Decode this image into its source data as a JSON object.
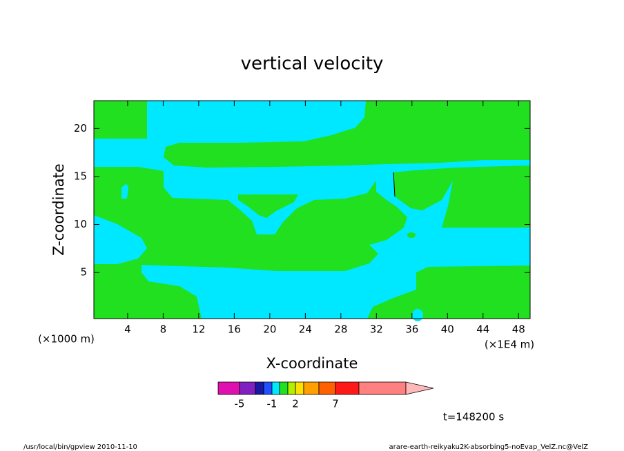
{
  "chart_data": {
    "type": "contour",
    "title": "vertical velocity",
    "x_label": "X-coordinate",
    "y_label": "Z-coordinate",
    "x_unit": "(×1E4 m)",
    "y_unit": "(×1000 m)",
    "xlim": [
      0.2,
      49.3
    ],
    "ylim": [
      0.2,
      22.9
    ],
    "xticks": [
      4,
      8,
      12,
      16,
      20,
      24,
      28,
      32,
      36,
      40,
      44,
      48
    ],
    "yticks": [
      5,
      10,
      15,
      20
    ],
    "colorbar": {
      "levels": [
        -7,
        -5,
        -3,
        -2,
        -1,
        0,
        1,
        2,
        3,
        5,
        7,
        10,
        15
      ],
      "colors": [
        "#e010b0",
        "#8020c0",
        "#1818a0",
        "#2050ff",
        "#00e8ff",
        "#20e020",
        "#b0f000",
        "#ffe000",
        "#ffa000",
        "#ff6000",
        "#ff1818",
        "#ff8080"
      ],
      "extend_color": "#ffb8b8",
      "ticks": [
        -5,
        -1,
        2,
        7
      ]
    },
    "annotation": "t=148200 s",
    "footer_left": "/usr/local/bin/gpview  2010-11-10",
    "footer_right": "arare-earth-reikyaku2K-absorbing5-noEvap_VelZ.nc@VelZ"
  }
}
